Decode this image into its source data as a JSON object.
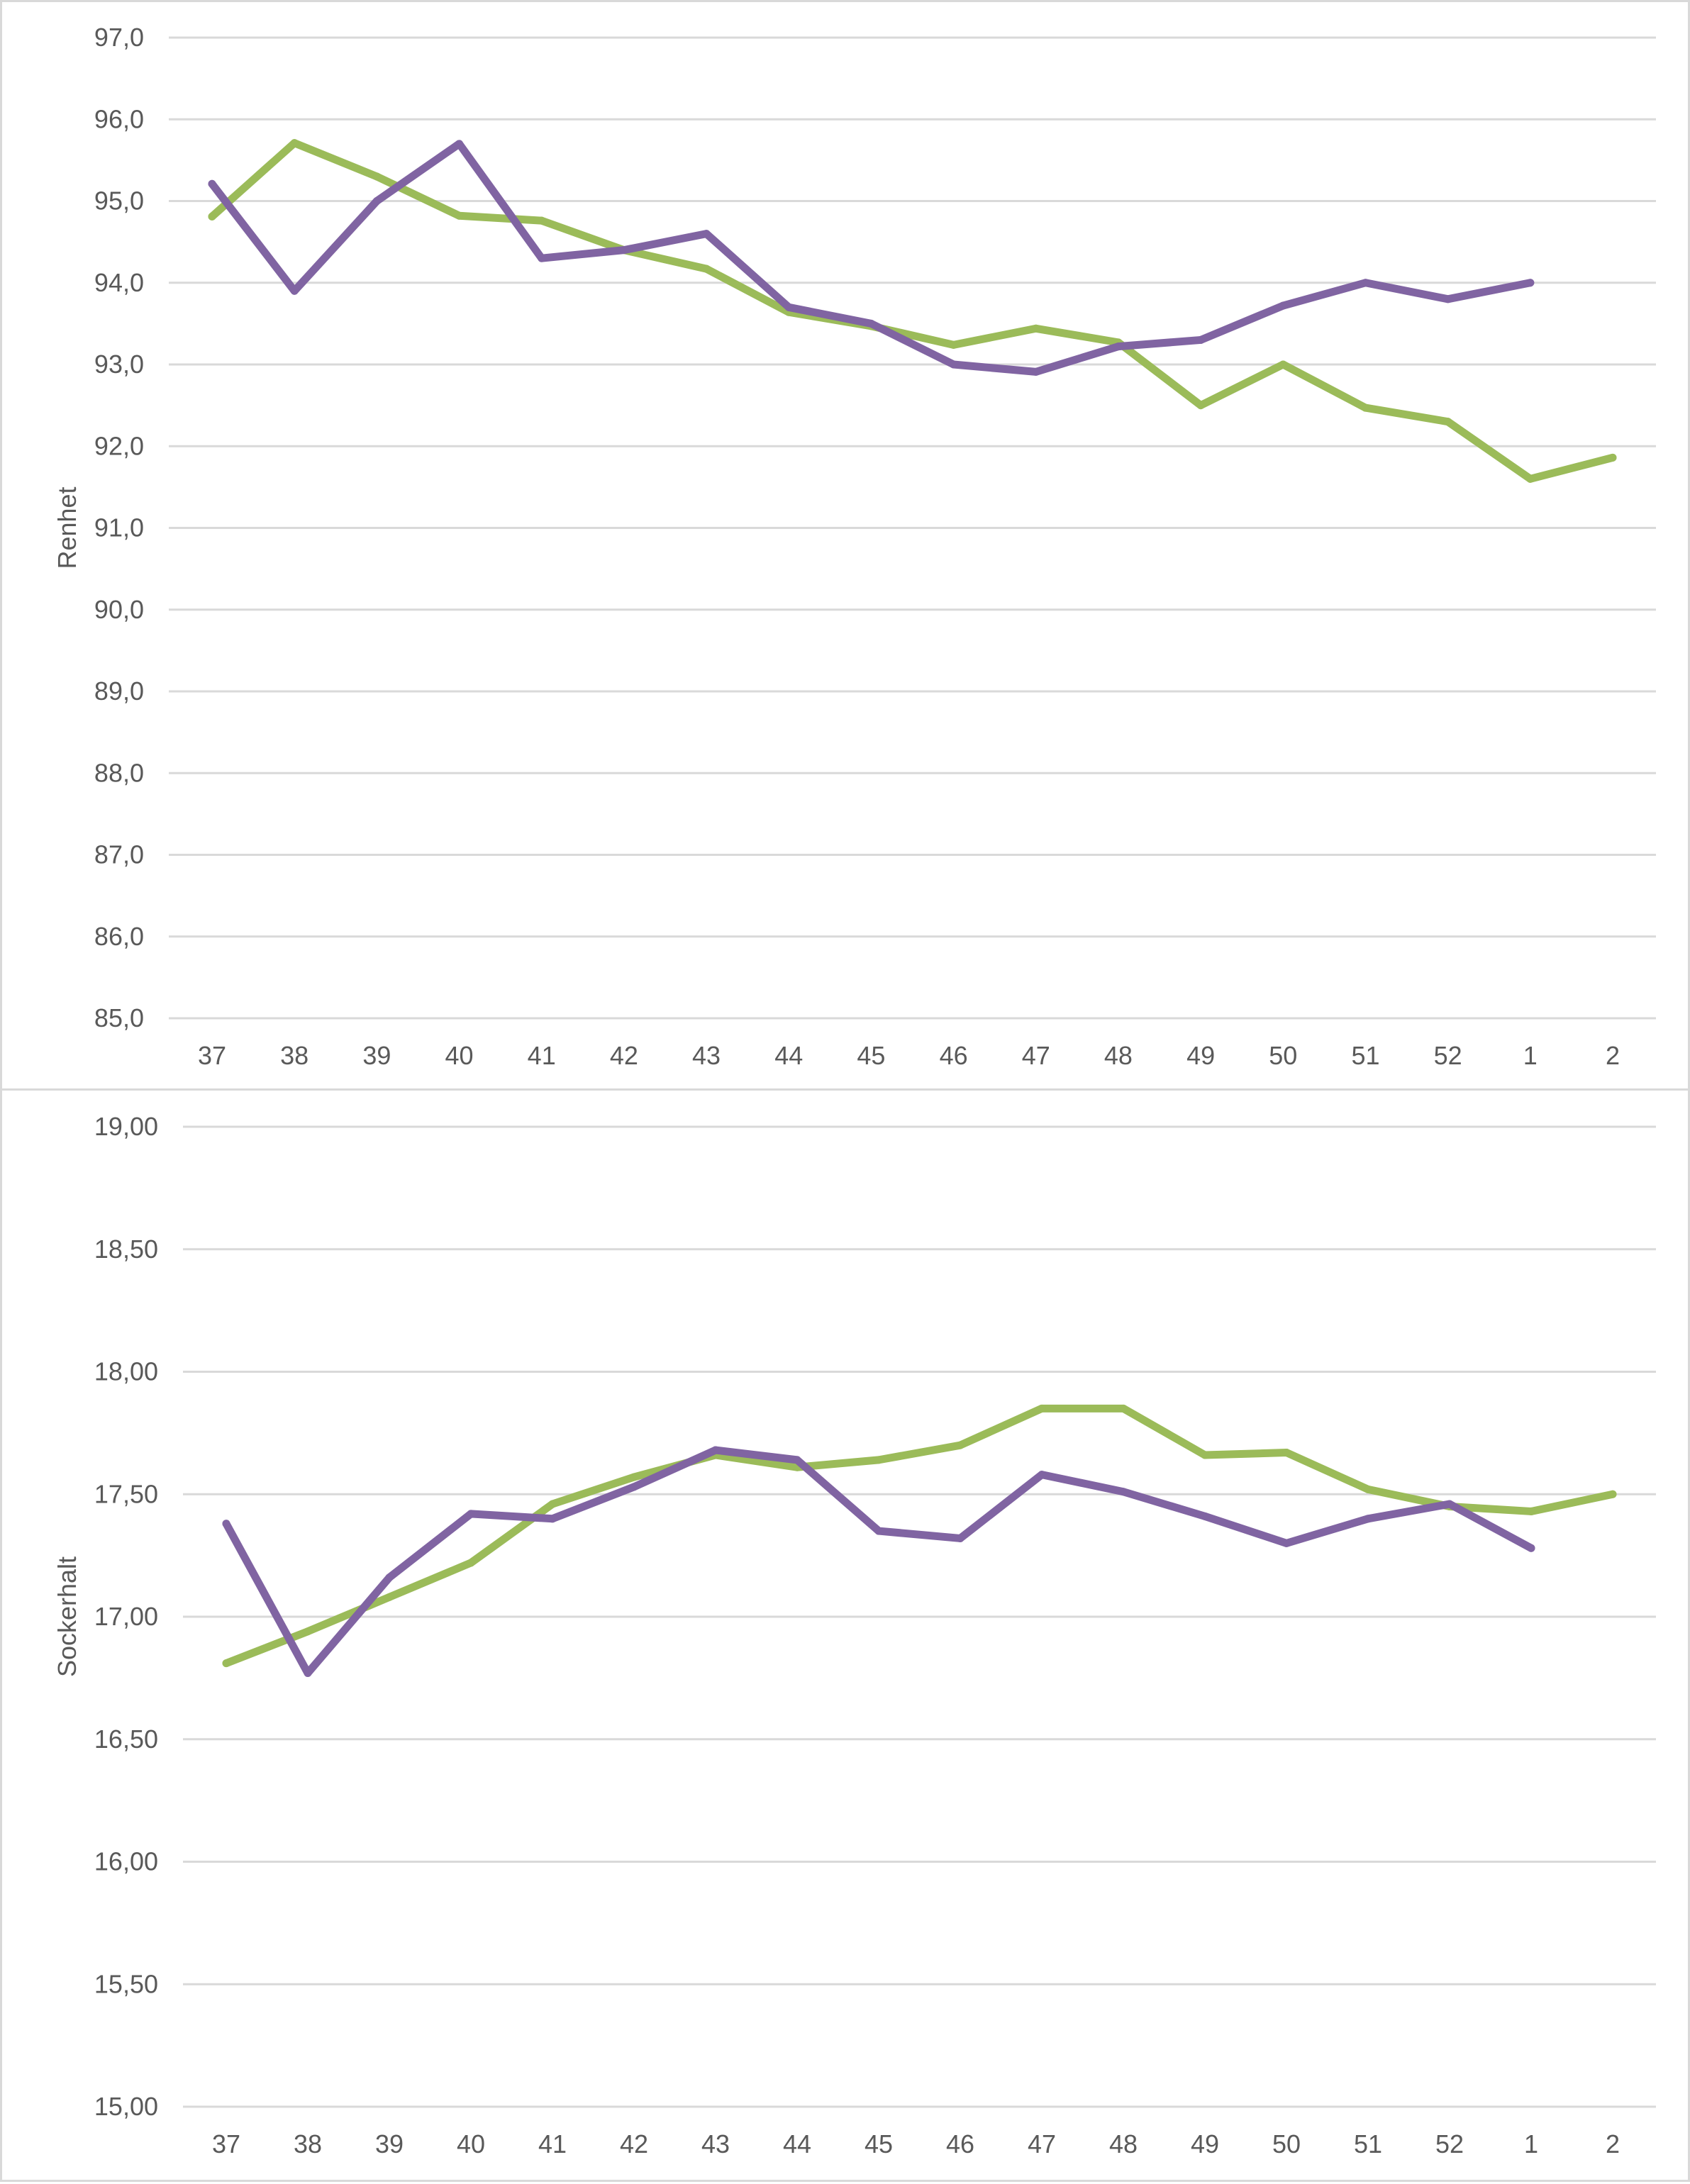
{
  "chart_data": [
    {
      "type": "line",
      "title": "",
      "xlabel": "",
      "ylabel": "Renhet",
      "ylim": [
        85.0,
        97.0
      ],
      "ytick_step": 1.0,
      "ytick_labels": [
        "85,0",
        "86,0",
        "87,0",
        "88,0",
        "89,0",
        "90,0",
        "91,0",
        "92,0",
        "93,0",
        "94,0",
        "95,0",
        "96,0",
        "97,0"
      ],
      "grid": true,
      "legend": "none",
      "categories": [
        "37",
        "38",
        "39",
        "40",
        "41",
        "42",
        "43",
        "44",
        "45",
        "46",
        "47",
        "48",
        "49",
        "50",
        "51",
        "52",
        "1",
        "2"
      ],
      "series": [
        {
          "name": "Series green",
          "color": "#9BBB59",
          "values": [
            94.81,
            95.71,
            95.3,
            94.82,
            94.76,
            94.4,
            94.17,
            93.64,
            93.47,
            93.24,
            93.44,
            93.27,
            92.5,
            93.0,
            92.47,
            92.3,
            91.6,
            91.86
          ]
        },
        {
          "name": "Series purple",
          "color": "#8064A2",
          "values": [
            95.21,
            93.9,
            95.0,
            95.7,
            94.3,
            94.4,
            94.6,
            93.7,
            93.5,
            93.0,
            92.91,
            93.22,
            93.3,
            93.72,
            94.0,
            93.8,
            94.0,
            null
          ]
        }
      ]
    },
    {
      "type": "line",
      "title": "",
      "xlabel": "",
      "ylabel": "Sockerhalt",
      "ylim": [
        15.0,
        19.0
      ],
      "ytick_step": 0.5,
      "ytick_labels": [
        "15,00",
        "15,50",
        "16,00",
        "16,50",
        "17,00",
        "17,50",
        "18,00",
        "18,50",
        "19,00"
      ],
      "grid": true,
      "legend": "none",
      "categories": [
        "37",
        "38",
        "39",
        "40",
        "41",
        "42",
        "43",
        "44",
        "45",
        "46",
        "47",
        "48",
        "49",
        "50",
        "51",
        "52",
        "1",
        "2"
      ],
      "series": [
        {
          "name": "Series green",
          "color": "#9BBB59",
          "values": [
            16.81,
            16.94,
            17.08,
            17.22,
            17.46,
            17.57,
            17.66,
            17.61,
            17.64,
            17.7,
            17.85,
            17.85,
            17.66,
            17.67,
            17.52,
            17.45,
            17.43,
            17.5
          ]
        },
        {
          "name": "Series purple",
          "color": "#8064A2",
          "values": [
            17.38,
            16.77,
            17.16,
            17.42,
            17.4,
            17.53,
            17.68,
            17.64,
            17.35,
            17.32,
            17.58,
            17.51,
            17.41,
            17.3,
            17.4,
            17.46,
            17.28,
            null
          ]
        }
      ]
    }
  ]
}
